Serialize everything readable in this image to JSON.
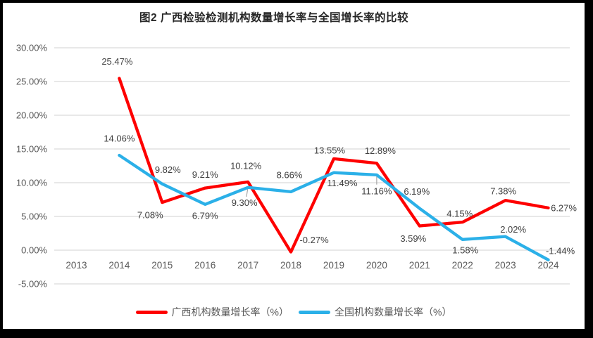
{
  "window": {
    "border_color": "#000000",
    "background": "#ffffff"
  },
  "chart_data": {
    "type": "line",
    "title": "图2 广西检验检测机构数量增长率与全国增长率的比较",
    "categories": [
      "2013",
      "2014",
      "2015",
      "2016",
      "2017",
      "2018",
      "2019",
      "2020",
      "2021",
      "2022",
      "2023",
      "2024"
    ],
    "series": [
      {
        "name": "广西机构数量增长率（%）",
        "color": "#fe0000",
        "values": [
          null,
          25.47,
          7.08,
          9.21,
          10.12,
          -0.27,
          13.55,
          12.89,
          3.59,
          4.15,
          7.38,
          6.27
        ],
        "labels": [
          null,
          "25.47%",
          "7.08%",
          "9.21%",
          "10.12%",
          "-0.27%",
          "13.55%",
          "12.89%",
          "3.59%",
          "4.15%",
          "7.38%",
          "6.27%"
        ]
      },
      {
        "name": "全国机构数量增长率（%）",
        "color": "#2bb0e8",
        "values": [
          null,
          14.06,
          9.82,
          6.79,
          9.3,
          8.66,
          11.49,
          11.16,
          6.19,
          1.58,
          2.02,
          -1.44
        ],
        "labels": [
          null,
          "14.06%",
          "9.82%",
          "6.79%",
          "9.30%",
          "8.66%",
          "11.49%",
          "11.16%",
          "6.19%",
          "1.58%",
          "2.02%",
          "-1.44%"
        ]
      }
    ],
    "y_axis": {
      "min": -5,
      "max": 30,
      "step": 5,
      "tick_labels": [
        "30.00%",
        "25.00%",
        "20.00%",
        "15.00%",
        "10.00%",
        "5.00%",
        "0.00%",
        "-5.00%"
      ]
    },
    "grid": "horizontal",
    "legend_position": "bottom",
    "colors": {
      "gridline": "#d9d9d9",
      "tick_label": "#595959",
      "data_label": "#404040",
      "title": "#262626",
      "leader": "#a6a6a6"
    },
    "layout": {
      "label_offsets": [
        [
          null,
          [
            -3,
            -24
          ],
          [
            -17,
            18
          ],
          [
            0,
            -19
          ],
          [
            -3,
            -23
          ],
          [
            33,
            -17
          ],
          [
            -6,
            -12
          ],
          [
            5,
            -18
          ],
          [
            -9,
            18
          ],
          [
            -4,
            -12
          ],
          [
            -3,
            -13
          ],
          [
            22,
            0
          ]
        ],
        [
          null,
          [
            0,
            -24
          ],
          [
            8,
            -20
          ],
          [
            0,
            16
          ],
          [
            -5,
            22
          ],
          [
            -2,
            -24
          ],
          [
            12,
            15
          ],
          [
            0,
            23
          ],
          [
            -4,
            -24
          ],
          [
            4,
            15
          ],
          [
            11,
            -10
          ],
          [
            17,
            -13
          ]
        ]
      ],
      "leader_points": [
        [
          1,
          4
        ],
        [
          1,
          7
        ]
      ]
    }
  }
}
